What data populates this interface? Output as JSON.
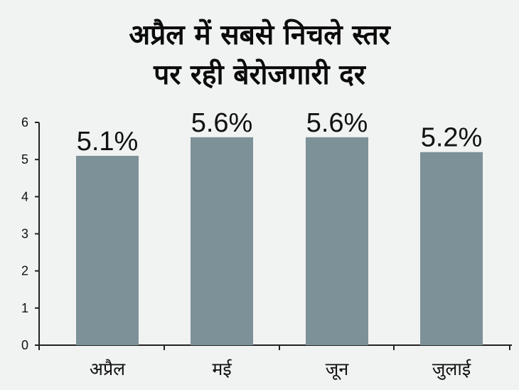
{
  "title_line1": "अप्रैल में सबसे निचले स्तर",
  "title_line2": "पर रही बेरोजगारी दर",
  "chart_data": {
    "type": "bar",
    "title": "अप्रैल में सबसे निचले स्तर पर रही बेरोजगारी दर",
    "xlabel": "",
    "ylabel": "",
    "categories": [
      "अप्रैल",
      "मई",
      "जून",
      "जुलाई"
    ],
    "values": [
      5.1,
      5.6,
      5.6,
      5.2
    ],
    "data_labels": [
      "5.1%",
      "5.6%",
      "5.6%",
      "5.2%"
    ],
    "ylim": [
      0,
      6
    ],
    "yticks": [
      0,
      1,
      2,
      3,
      4,
      5,
      6
    ],
    "grid": false,
    "legend": "none",
    "bar_color": "#7d9199"
  }
}
